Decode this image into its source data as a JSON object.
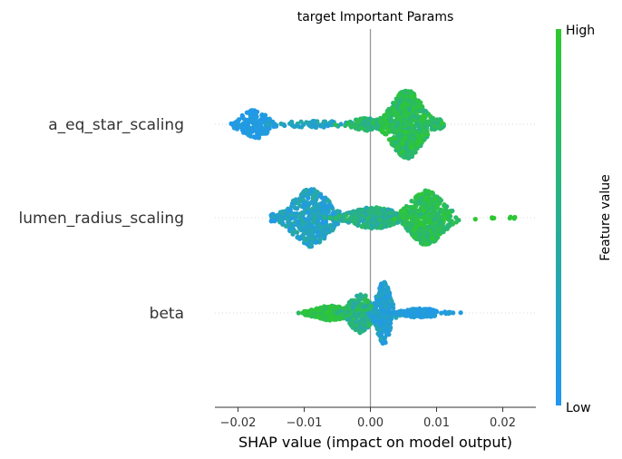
{
  "chart_data": {
    "type": "beeswarm",
    "title": "target Important Params",
    "xlabel": "SHAP value (impact on model output)",
    "xlim": [
      -0.0235,
      0.025
    ],
    "xticks": [
      -0.02,
      -0.01,
      0.0,
      0.01,
      0.02
    ],
    "xtick_labels": [
      "−0.02",
      "−0.01",
      "0.00",
      "0.01",
      "0.02"
    ],
    "colorbar": {
      "label": "Feature value",
      "high_label": "High",
      "low_label": "Low",
      "low_color": "#2196f3",
      "high_color": "#2ec82e"
    },
    "zero_line_color": "#999999",
    "features": [
      {
        "name": "a_eq_star_scaling",
        "clusters": [
          {
            "center": -0.0175,
            "spread": 0.0028,
            "count": 150,
            "height": 16,
            "color": [
              0.02,
              0.15
            ]
          },
          {
            "center": -0.0085,
            "spread": 0.006,
            "count": 70,
            "height": 4,
            "color": [
              0.12,
              0.45
            ]
          },
          {
            "center": -0.0005,
            "spread": 0.003,
            "count": 90,
            "height": 7,
            "color": [
              0.45,
              0.85
            ]
          },
          {
            "center": 0.0055,
            "spread": 0.0032,
            "count": 700,
            "height": 38,
            "color": [
              0.55,
              1.0
            ]
          },
          {
            "center": 0.0103,
            "spread": 0.0008,
            "count": 25,
            "height": 6,
            "color": [
              0.55,
              0.95
            ]
          }
        ],
        "range": [
          -0.0215,
          0.0117
        ]
      },
      {
        "name": "lumen_radius_scaling",
        "clusters": [
          {
            "center": -0.015,
            "spread": 0.0018,
            "count": 40,
            "height": 4,
            "color": [
              0.02,
              0.2
            ]
          },
          {
            "center": -0.009,
            "spread": 0.0038,
            "count": 420,
            "height": 32,
            "color": [
              0.05,
              0.45
            ]
          },
          {
            "center": 0.0005,
            "spread": 0.0045,
            "count": 300,
            "height": 12,
            "color": [
              0.3,
              0.75
            ]
          },
          {
            "center": 0.0085,
            "spread": 0.0035,
            "count": 480,
            "height": 30,
            "color": [
              0.6,
              1.0
            ]
          },
          {
            "center": 0.0185,
            "spread": 0.0005,
            "count": 4,
            "height": 1,
            "color": [
              0.95,
              1.0
            ]
          },
          {
            "center": 0.0215,
            "spread": 0.0007,
            "count": 5,
            "height": 1,
            "color": [
              0.95,
              1.0
            ]
          }
        ],
        "range": [
          -0.015,
          0.023
        ]
      },
      {
        "name": "beta",
        "clusters": [
          {
            "center": -0.006,
            "spread": 0.0035,
            "count": 220,
            "height": 8,
            "color": [
              0.7,
              1.0
            ]
          },
          {
            "center": -0.0015,
            "spread": 0.0022,
            "count": 260,
            "height": 22,
            "color": [
              0.35,
              0.85
            ]
          },
          {
            "center": 0.002,
            "spread": 0.0015,
            "count": 260,
            "height": 34,
            "color": [
              0.05,
              0.35
            ]
          },
          {
            "center": 0.0075,
            "spread": 0.0035,
            "count": 130,
            "height": 5,
            "color": [
              0.02,
              0.2
            ]
          }
        ],
        "range": [
          -0.011,
          0.0155
        ]
      }
    ]
  }
}
